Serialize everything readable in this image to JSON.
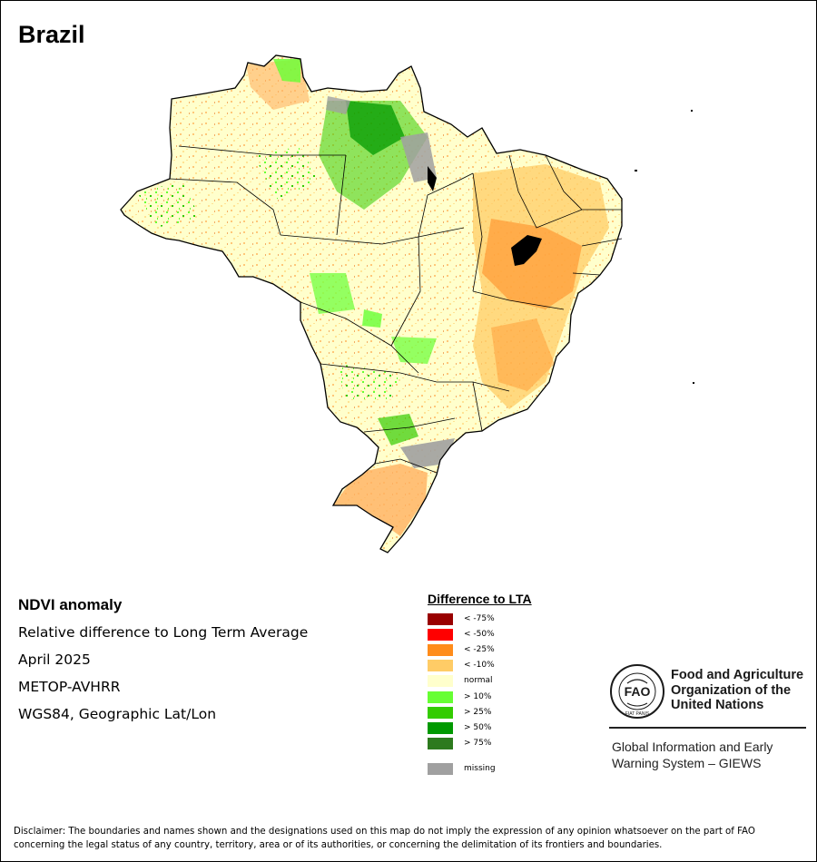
{
  "map_title": "Brazil",
  "info": {
    "product": "NDVI anomaly",
    "description": "Relative difference to Long Term Average",
    "period": "April 2025",
    "sensor": "METOP-AVHRR",
    "projection": "WGS84, Geographic Lat/Lon"
  },
  "legend": {
    "title": "Difference to LTA",
    "items": [
      {
        "label": "< -75%",
        "color": "#990000"
      },
      {
        "label": "< -50%",
        "color": "#ff0000"
      },
      {
        "label": "< -25%",
        "color": "#ff8c1a"
      },
      {
        "label": "< -10%",
        "color": "#ffcc66"
      },
      {
        "label": "normal",
        "color": "#ffffcc"
      },
      {
        "label": "> 10%",
        "color": "#66ff33"
      },
      {
        "label": "> 25%",
        "color": "#33cc00"
      },
      {
        "label": "> 50%",
        "color": "#009900"
      },
      {
        "label": "> 75%",
        "color": "#2d7a1e"
      },
      {
        "label": "missing",
        "color": "#a0a0a0"
      }
    ]
  },
  "organization": {
    "name": "Food and Agriculture Organization of the United Nations",
    "logo_text": "FAO",
    "logo_motto": "FIAT PANIS",
    "program": "Global Information and Early Warning System – GIEWS"
  },
  "disclaimer": "Disclaimer: The boundaries and names shown and the designations used on this map do not imply the expression of any opinion whatsoever on the part of FAO concerning the legal status of any country, territory, area or of its authorities, or concerning the delimitation of its frontiers and boundaries."
}
